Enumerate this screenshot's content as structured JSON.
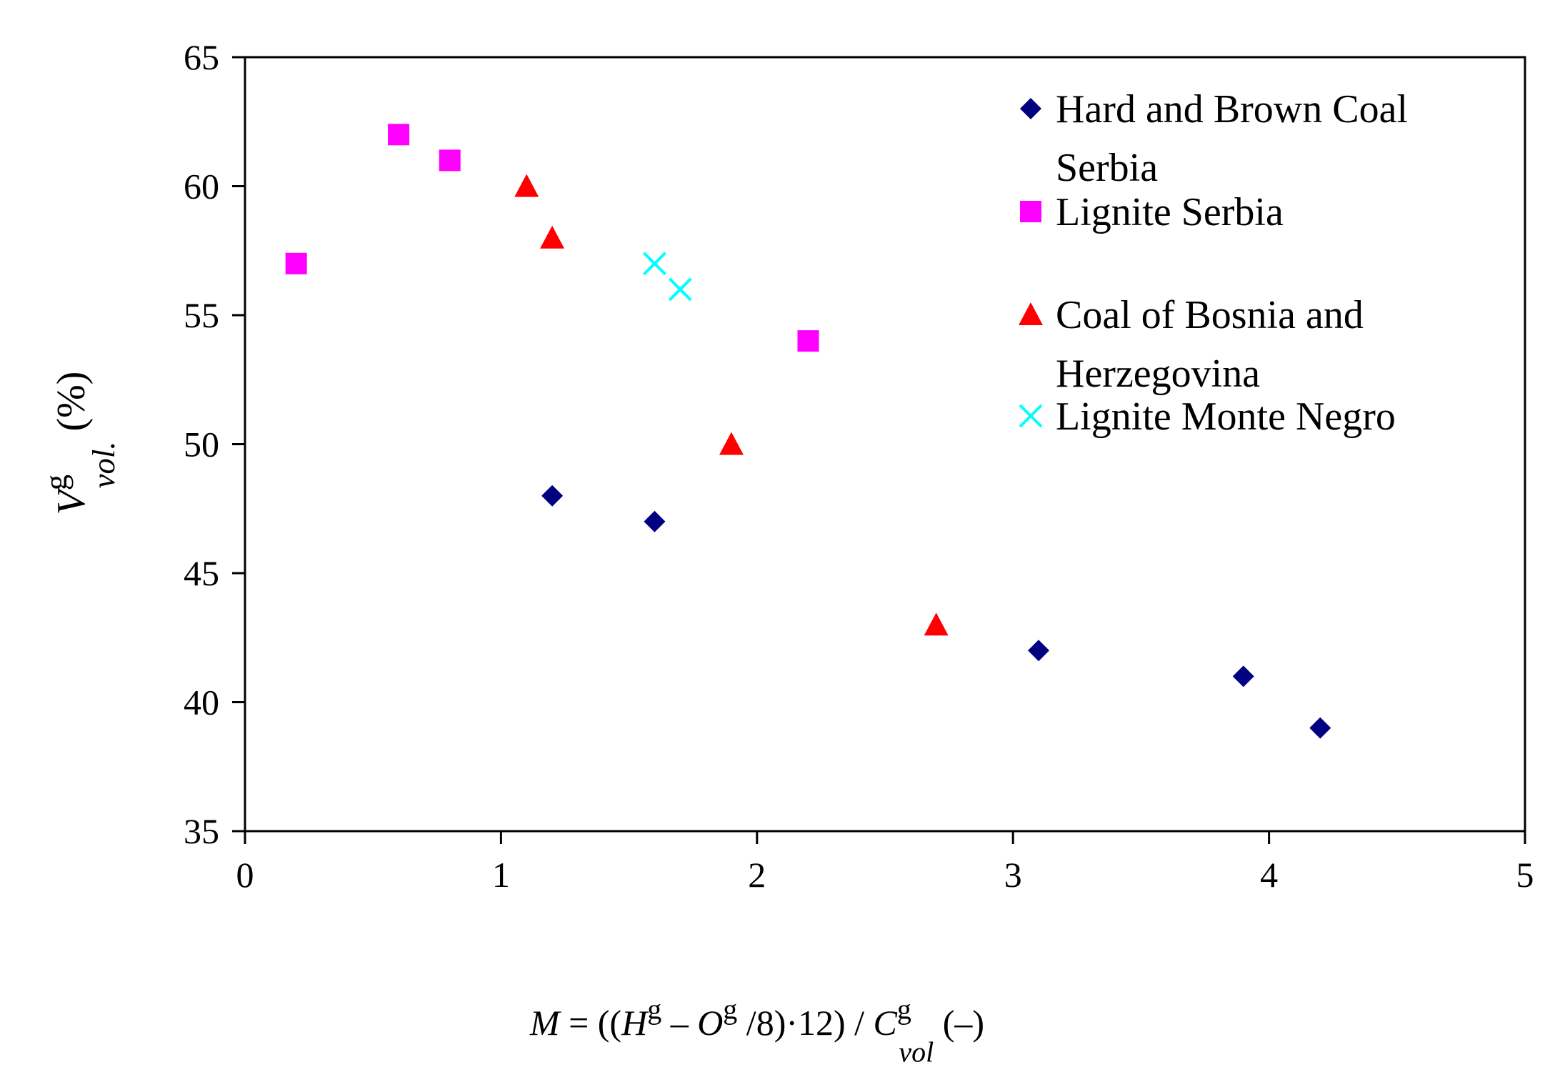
{
  "chart_data": {
    "type": "scatter",
    "title": "",
    "xlabel": {
      "parts": [
        {
          "text": "M",
          "style": "italic"
        },
        {
          "text": " = ((",
          "style": "normal"
        },
        {
          "text": "H",
          "style": "italic"
        },
        {
          "text": "g",
          "style": "sup"
        },
        {
          "text": " – ",
          "style": "normal"
        },
        {
          "text": "O",
          "style": "italic"
        },
        {
          "text": "g",
          "style": "sup"
        },
        {
          "text": " /8)·12) / ",
          "style": "normal"
        },
        {
          "text": "C",
          "style": "italic"
        },
        {
          "text": "g",
          "style": "sup"
        },
        {
          "text": "vol",
          "style": "sub"
        },
        {
          "text": " (–)",
          "style": "normal"
        }
      ]
    },
    "ylabel": {
      "parts": [
        {
          "text": "V",
          "style": "italic"
        },
        {
          "text": "g",
          "style": "sup"
        },
        {
          "text": "vol.",
          "style": "sub"
        },
        {
          "text": " (%)",
          "style": "normal"
        }
      ]
    },
    "xlim": [
      0,
      5
    ],
    "ylim": [
      35,
      65
    ],
    "xticks": [
      "0",
      "1",
      "2",
      "3",
      "4",
      "5"
    ],
    "yticks": [
      "35",
      "40",
      "45",
      "50",
      "55",
      "60",
      "65"
    ],
    "grid": false,
    "legend_position": "top-right",
    "series": [
      {
        "name": "Hard and Brown Coal Serbia",
        "legend_lines": [
          "Hard and Brown Coal",
          "Serbia"
        ],
        "marker": "diamond",
        "color": "#000080",
        "x": [
          1.2,
          1.6,
          3.1,
          3.9,
          4.2
        ],
        "y": [
          48,
          47,
          42,
          41,
          39
        ]
      },
      {
        "name": "Lignite Serbia",
        "legend_lines": [
          "Lignite Serbia"
        ],
        "marker": "square",
        "color": "#ff00ff",
        "x": [
          0.2,
          0.6,
          0.8,
          2.2
        ],
        "y": [
          57,
          62,
          61,
          54
        ]
      },
      {
        "name": "Coal of Bosnia and Herzegovina",
        "legend_lines": [
          "Coal of Bosnia and",
          "Herzegovina"
        ],
        "marker": "triangle",
        "color": "#ff0000",
        "x": [
          1.1,
          1.2,
          1.9,
          2.7
        ],
        "y": [
          60,
          58,
          50,
          43
        ]
      },
      {
        "name": "Lignite Monte Negro",
        "legend_lines": [
          "Lignite Monte Negro"
        ],
        "marker": "x",
        "color": "#00ffff",
        "x": [
          1.6,
          1.7
        ],
        "y": [
          57,
          56
        ]
      }
    ]
  }
}
